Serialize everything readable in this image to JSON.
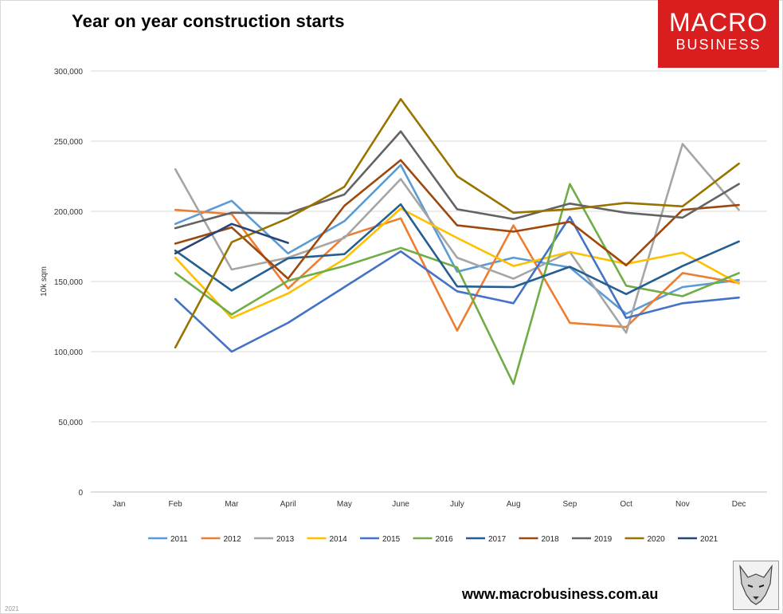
{
  "header": {
    "title": "Year on year construction starts",
    "brand_line1": "MACRO",
    "brand_line2": "BUSINESS"
  },
  "footer": {
    "url": "www.macrobusiness.com.au",
    "note": "2021"
  },
  "chart_data": {
    "type": "line",
    "title": "Year on year construction starts",
    "xlabel": "",
    "ylabel": "10k sqm",
    "categories": [
      "Jan",
      "Feb",
      "Mar",
      "April",
      "May",
      "June",
      "July",
      "Aug",
      "Sep",
      "Oct",
      "Nov",
      "Dec"
    ],
    "ylim": [
      0,
      300000
    ],
    "yticks": [
      0,
      50000,
      100000,
      150000,
      200000,
      250000,
      300000
    ],
    "ytick_labels": [
      "0",
      "50,000",
      "100,000",
      "150,000",
      "200,000",
      "250,000",
      "300,000"
    ],
    "grid": true,
    "legend_position": "bottom",
    "series": [
      {
        "name": "2011",
        "color": "#5b9bd5",
        "values": [
          null,
          191000,
          207500,
          170000,
          193000,
          233000,
          157000,
          167000,
          160000,
          127000,
          146000,
          151000
        ]
      },
      {
        "name": "2012",
        "color": "#ed7d31",
        "values": [
          null,
          201000,
          198000,
          145000,
          182000,
          195000,
          115000,
          190000,
          120500,
          117500,
          156000,
          149000
        ]
      },
      {
        "name": "2013",
        "color": "#a5a5a5",
        "values": [
          null,
          230000,
          158500,
          167000,
          181000,
          223000,
          167000,
          152000,
          171000,
          113500,
          248000,
          201000
        ]
      },
      {
        "name": "2014",
        "color": "#ffc000",
        "values": [
          null,
          167000,
          124000,
          141500,
          166000,
          202000,
          181000,
          161000,
          171000,
          162500,
          170500,
          148500
        ]
      },
      {
        "name": "2015",
        "color": "#4472c4",
        "values": [
          null,
          137500,
          100000,
          120500,
          146000,
          171500,
          143000,
          134500,
          196000,
          124000,
          134500,
          138500
        ]
      },
      {
        "name": "2016",
        "color": "#70ad47",
        "values": [
          null,
          156000,
          126500,
          150500,
          161000,
          174000,
          160000,
          77000,
          219500,
          147000,
          139500,
          156000
        ]
      },
      {
        "name": "2017",
        "color": "#255e91",
        "values": [
          null,
          172000,
          143500,
          166500,
          169500,
          205000,
          146500,
          146000,
          160500,
          141000,
          161000,
          178500
        ]
      },
      {
        "name": "2018",
        "color": "#9e480e",
        "values": [
          null,
          177000,
          188500,
          152000,
          204000,
          236500,
          190000,
          185500,
          192500,
          161500,
          201000,
          204500
        ]
      },
      {
        "name": "2019",
        "color": "#636363",
        "values": [
          null,
          188000,
          199000,
          198500,
          212000,
          257000,
          201500,
          194500,
          205500,
          199000,
          195500,
          219500
        ]
      },
      {
        "name": "2020",
        "color": "#997300",
        "values": [
          null,
          103000,
          178000,
          195000,
          217500,
          280000,
          225000,
          199000,
          201500,
          206000,
          203500,
          234000
        ]
      },
      {
        "name": "2021",
        "color": "#264478",
        "values": [
          null,
          170000,
          191000,
          177500,
          null,
          null,
          null,
          null,
          null,
          null,
          null,
          null
        ]
      }
    ]
  }
}
